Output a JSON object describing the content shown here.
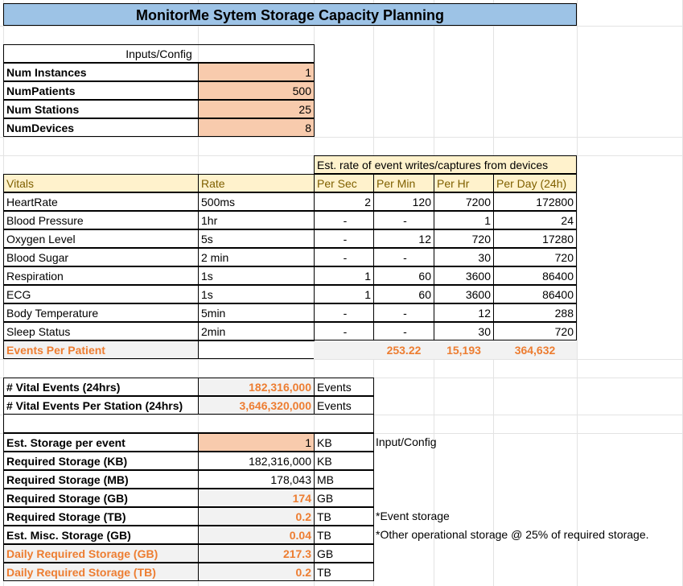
{
  "title": "MonitorMe Sytem Storage Capacity Planning",
  "inputs": {
    "header": "Inputs/Config",
    "rows": [
      {
        "label": "Num Instances",
        "value": "1"
      },
      {
        "label": "NumPatients",
        "value": "500"
      },
      {
        "label": "Num Stations",
        "value": "25"
      },
      {
        "label": "NumDevices",
        "value": "8"
      }
    ]
  },
  "vitals": {
    "rate_header": "Est. rate of event writes/captures from devices",
    "columns": [
      "Vitals",
      "Rate",
      "Per Sec",
      "Per Min",
      "Per Hr",
      "Per Day (24h)"
    ],
    "rows": [
      {
        "name": "HeartRate",
        "rate": "500ms",
        "per_sec": "2",
        "per_min": "120",
        "per_hr": "7200",
        "per_day": "172800"
      },
      {
        "name": "Blood Pressure",
        "rate": "1hr",
        "per_sec": "-",
        "per_min": "-",
        "per_hr": "1",
        "per_day": "24"
      },
      {
        "name": "Oxygen Level",
        "rate": "5s",
        "per_sec": "-",
        "per_min": "12",
        "per_hr": "720",
        "per_day": "17280"
      },
      {
        "name": "Blood Sugar",
        "rate": "2 min",
        "per_sec": "-",
        "per_min": "-",
        "per_hr": "30",
        "per_day": "720"
      },
      {
        "name": "Respiration",
        "rate": "1s",
        "per_sec": "1",
        "per_min": "60",
        "per_hr": "3600",
        "per_day": "86400"
      },
      {
        "name": "ECG",
        "rate": "1s",
        "per_sec": "1",
        "per_min": "60",
        "per_hr": "3600",
        "per_day": "86400"
      },
      {
        "name": "Body Temperature",
        "rate": "5min",
        "per_sec": "-",
        "per_min": "-",
        "per_hr": "12",
        "per_day": "288"
      },
      {
        "name": "Sleep Status",
        "rate": "2min",
        "per_sec": "-",
        "per_min": "-",
        "per_hr": "30",
        "per_day": "720"
      }
    ],
    "totals": {
      "label": "Events Per Patient",
      "per_min": "253.22",
      "per_hr": "15,193",
      "per_day": "364,632"
    }
  },
  "events": {
    "rows": [
      {
        "label": "# Vital Events (24hrs)",
        "value": "182,316,000",
        "unit": "Events"
      },
      {
        "label": "# Vital Events Per Station (24hrs)",
        "value": "3,646,320,000",
        "unit": "Events"
      }
    ]
  },
  "storage": {
    "rows": [
      {
        "label": "Est. Storage per event",
        "value": "1",
        "unit": "KB",
        "note": "Input/Config"
      },
      {
        "label": "Required Storage (KB)",
        "value": "182,316,000",
        "unit": "KB",
        "note": ""
      },
      {
        "label": "Required Storage (MB)",
        "value": "178,043",
        "unit": "MB",
        "note": ""
      },
      {
        "label": "Required Storage (GB)",
        "value": "174",
        "unit": "GB",
        "note": ""
      },
      {
        "label": "Required Storage (TB)",
        "value": "0.2",
        "unit": "TB",
        "note": "*Event storage"
      },
      {
        "label": "Est. Misc. Storage (GB)",
        "value": "0.04",
        "unit": "TB",
        "note": "*Other operational storage @ 25% of required storage."
      },
      {
        "label": "Daily Required Storage (GB)",
        "value": "217.3",
        "unit": "GB",
        "note": ""
      },
      {
        "label": "Daily Required Storage (TB)",
        "value": "0.2",
        "unit": "TB",
        "note": ""
      }
    ]
  },
  "colors": {
    "title_fill": "#9dc3e6",
    "input_fill": "#f8cbad",
    "header_fill": "#fff2cc",
    "highlight_text": "#ed7d31",
    "total_fill": "#f2f2f2"
  }
}
